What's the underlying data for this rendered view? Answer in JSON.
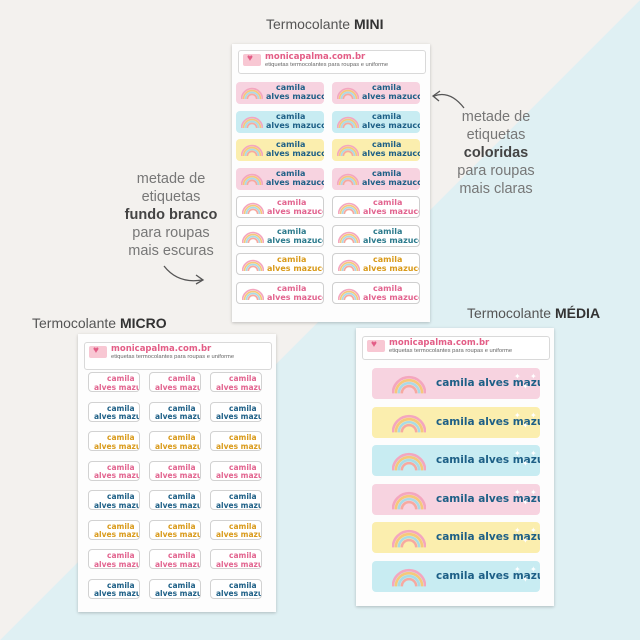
{
  "titles": {
    "mini": {
      "prefix": "Termocolante ",
      "bold": "MINI"
    },
    "micro": {
      "prefix": "Termocolante ",
      "bold": "MICRO"
    },
    "media": {
      "prefix": "Termocolante ",
      "bold": "MÉDIA"
    }
  },
  "notes": {
    "white": {
      "line1": "metade de",
      "line2": "etiquetas",
      "bold": "fundo branco",
      "line4": "para roupas",
      "line5": "mais escuras"
    },
    "colored": {
      "line1": "metade de",
      "line2": "etiquetas",
      "bold": "coloridas",
      "line4": "para roupas",
      "line5": "mais claras"
    }
  },
  "brand": {
    "name": "monicapalma.com.br",
    "tagline": "etiquetas termocolantes para roupas e uniforme"
  },
  "label_name": {
    "line1": "camila",
    "line2": "alves mazuco",
    "full": "camila alves mazuco"
  },
  "colors": {
    "pink": "#f7d3e0",
    "blue": "#c8ecf2",
    "yellow": "#fbeeae",
    "white": "#ffffff",
    "text_blue": "#1d5f86",
    "text_pink": "#e2648f",
    "text_gold": "#d99a1a",
    "text_teal": "#2b7a8c"
  },
  "icons": [
    "heart-envelope-icon",
    "rainbow-icon",
    "curved-arrow-icon"
  ]
}
